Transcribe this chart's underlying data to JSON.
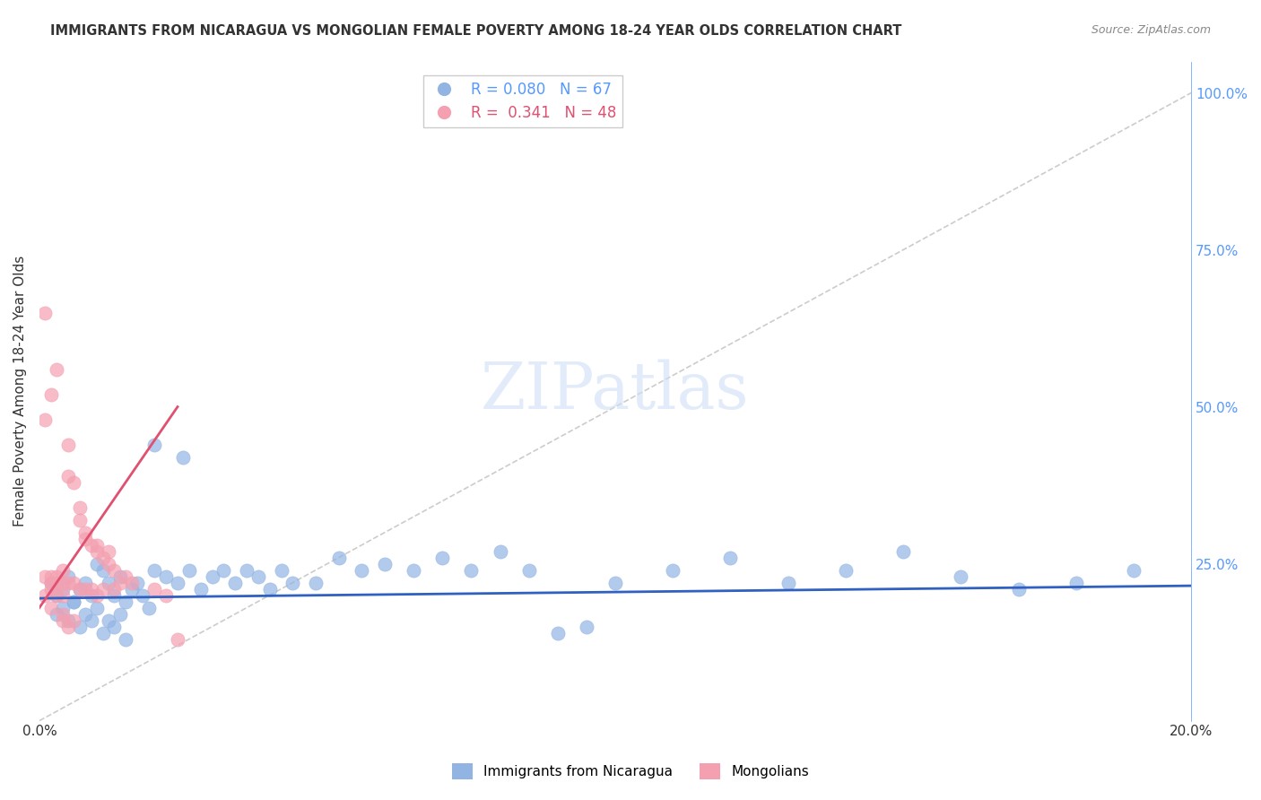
{
  "title": "IMMIGRANTS FROM NICARAGUA VS MONGOLIAN FEMALE POVERTY AMONG 18-24 YEAR OLDS CORRELATION CHART",
  "source": "Source: ZipAtlas.com",
  "xlabel": "",
  "ylabel": "Female Poverty Among 18-24 Year Olds",
  "right_ylabel": "",
  "xlim": [
    0.0,
    0.2
  ],
  "ylim": [
    0.0,
    1.05
  ],
  "xticks": [
    0.0,
    0.05,
    0.1,
    0.15,
    0.2
  ],
  "xticklabels": [
    "0.0%",
    "",
    "",
    "",
    "20.0%"
  ],
  "yticks_right": [
    0.0,
    0.25,
    0.5,
    0.75,
    1.0
  ],
  "yticklabels_right": [
    "",
    "25.0%",
    "50.0%",
    "75.0%",
    "100.0%"
  ],
  "legend_blue_r": "0.080",
  "legend_blue_n": "67",
  "legend_pink_r": "0.341",
  "legend_pink_n": "48",
  "blue_color": "#92b4e3",
  "pink_color": "#f4a0b0",
  "blue_line_color": "#3060c0",
  "pink_line_color": "#e05070",
  "diagonal_color": "#cccccc",
  "grid_color": "#dddddd",
  "title_color": "#333333",
  "right_axis_color": "#5599ff",
  "watermark": "ZIPatlas",
  "blue_scatter_x": [
    0.002,
    0.003,
    0.004,
    0.005,
    0.006,
    0.007,
    0.008,
    0.009,
    0.01,
    0.011,
    0.012,
    0.013,
    0.014,
    0.015,
    0.016,
    0.017,
    0.018,
    0.019,
    0.02,
    0.022,
    0.024,
    0.026,
    0.028,
    0.03,
    0.032,
    0.034,
    0.036,
    0.038,
    0.04,
    0.042,
    0.044,
    0.048,
    0.052,
    0.056,
    0.06,
    0.065,
    0.07,
    0.075,
    0.08,
    0.085,
    0.09,
    0.095,
    0.1,
    0.11,
    0.12,
    0.13,
    0.14,
    0.15,
    0.16,
    0.17,
    0.18,
    0.19,
    0.003,
    0.004,
    0.005,
    0.006,
    0.007,
    0.008,
    0.009,
    0.01,
    0.011,
    0.012,
    0.013,
    0.014,
    0.015,
    0.02,
    0.025
  ],
  "blue_scatter_y": [
    0.22,
    0.2,
    0.21,
    0.23,
    0.19,
    0.21,
    0.22,
    0.2,
    0.25,
    0.24,
    0.22,
    0.2,
    0.23,
    0.19,
    0.21,
    0.22,
    0.2,
    0.18,
    0.24,
    0.23,
    0.22,
    0.24,
    0.21,
    0.23,
    0.24,
    0.22,
    0.24,
    0.23,
    0.21,
    0.24,
    0.22,
    0.22,
    0.26,
    0.24,
    0.25,
    0.24,
    0.26,
    0.24,
    0.27,
    0.24,
    0.14,
    0.15,
    0.22,
    0.24,
    0.26,
    0.22,
    0.24,
    0.27,
    0.23,
    0.21,
    0.22,
    0.24,
    0.17,
    0.18,
    0.16,
    0.19,
    0.15,
    0.17,
    0.16,
    0.18,
    0.14,
    0.16,
    0.15,
    0.17,
    0.13,
    0.44,
    0.42
  ],
  "pink_scatter_x": [
    0.001,
    0.001,
    0.001,
    0.002,
    0.002,
    0.002,
    0.003,
    0.003,
    0.003,
    0.004,
    0.004,
    0.004,
    0.005,
    0.005,
    0.005,
    0.006,
    0.006,
    0.007,
    0.007,
    0.007,
    0.008,
    0.008,
    0.008,
    0.009,
    0.009,
    0.01,
    0.01,
    0.01,
    0.011,
    0.011,
    0.012,
    0.012,
    0.013,
    0.013,
    0.014,
    0.015,
    0.016,
    0.02,
    0.022,
    0.024,
    0.001,
    0.002,
    0.002,
    0.003,
    0.004,
    0.004,
    0.005,
    0.006
  ],
  "pink_scatter_y": [
    0.65,
    0.23,
    0.2,
    0.22,
    0.21,
    0.23,
    0.22,
    0.2,
    0.23,
    0.22,
    0.24,
    0.2,
    0.44,
    0.39,
    0.22,
    0.38,
    0.22,
    0.34,
    0.32,
    0.21,
    0.3,
    0.29,
    0.21,
    0.28,
    0.21,
    0.27,
    0.28,
    0.2,
    0.26,
    0.21,
    0.27,
    0.25,
    0.24,
    0.21,
    0.22,
    0.23,
    0.22,
    0.21,
    0.2,
    0.13,
    0.48,
    0.52,
    0.18,
    0.56,
    0.16,
    0.17,
    0.15,
    0.16
  ],
  "ref_line_x": [
    0.0,
    0.2
  ],
  "ref_line_y": [
    0.0,
    1.0
  ],
  "blue_trend_x": [
    0.0,
    0.2
  ],
  "blue_trend_y": [
    0.195,
    0.215
  ],
  "pink_trend_x": [
    0.0,
    0.024
  ],
  "pink_trend_y": [
    0.18,
    0.5
  ]
}
